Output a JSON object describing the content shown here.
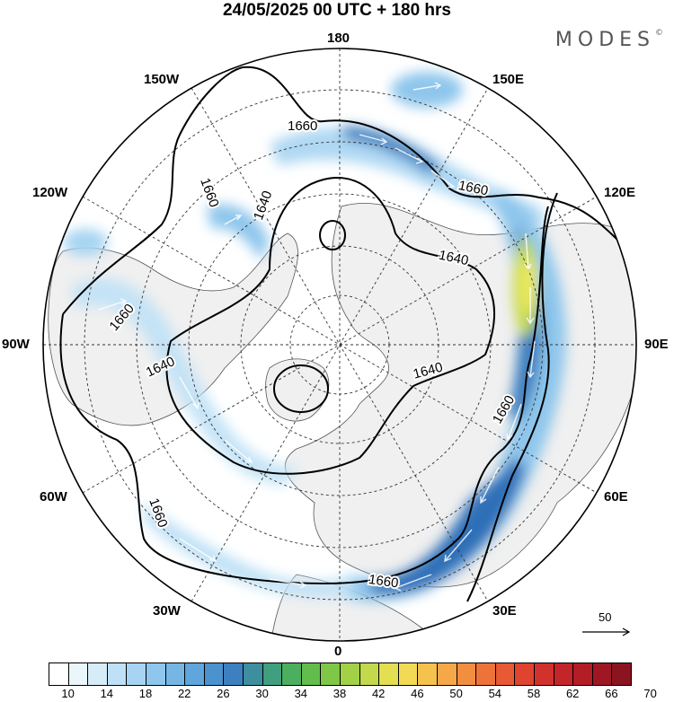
{
  "header": {
    "title": "24/05/2025  00 UTC  + 180 hrs",
    "brand": "MODES",
    "brand_mark": "©"
  },
  "map": {
    "projection": "polar stereographic, north pole",
    "longitude_labels": [
      "180",
      "150E",
      "120E",
      "90E",
      "60E",
      "30E",
      "0",
      "30W",
      "60W",
      "90W",
      "120W",
      "150W"
    ],
    "contour_labels": [
      "1660",
      "1660",
      "1660",
      "1640",
      "1640",
      "1640",
      "1640",
      "1660",
      "1660",
      "1660",
      "1660"
    ],
    "reference_vector": {
      "label": "50",
      "value": 50
    },
    "colors": {
      "land": "#f0f0f0",
      "jet_light": "#cfe6f7",
      "jet_mid": "#6aaede",
      "jet_core": "#2f6fb8",
      "jet_max": "#f1ec5a"
    }
  },
  "colorbar": {
    "colors": [
      "#ffffff",
      "#eaf5fc",
      "#d6ecf9",
      "#bfe1f6",
      "#a6d4f2",
      "#8ec6ec",
      "#76b6e4",
      "#5ea6dc",
      "#4a93cf",
      "#3e7fbf",
      "#3d8f9f",
      "#3f9f7f",
      "#4caf5f",
      "#62bd4c",
      "#7fc847",
      "#a2d147",
      "#c3d84a",
      "#e3de52",
      "#f2da55",
      "#f5c24e",
      "#f5a847",
      "#f28e40",
      "#ee733a",
      "#e85a34",
      "#df4430",
      "#d2322c",
      "#c42529",
      "#b31d26",
      "#9f1723",
      "#8a1420"
    ],
    "tick_labels": [
      "10",
      "14",
      "18",
      "22",
      "26",
      "30",
      "34",
      "38",
      "42",
      "46",
      "50",
      "54",
      "58",
      "62",
      "66",
      "70"
    ]
  }
}
